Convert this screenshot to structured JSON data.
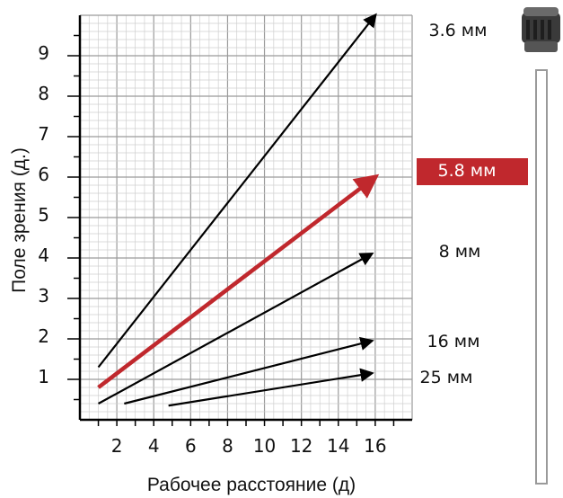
{
  "chart_data": {
    "type": "line",
    "xlabel": "Рабочее расстояние (д)",
    "ylabel": "Поле зрения (д.)",
    "xlim": [
      0,
      18
    ],
    "ylim": [
      0,
      10
    ],
    "x_ticks": [
      "2",
      "4",
      "6",
      "8",
      "10",
      "12",
      "14",
      "16"
    ],
    "y_ticks": [
      "1",
      "2",
      "3",
      "4",
      "5",
      "6",
      "7",
      "8",
      "9"
    ],
    "grid": true,
    "highlight_color": "#c0282d",
    "series": [
      {
        "name": "3.6 мм",
        "x": [
          1,
          16
        ],
        "y": [
          1.3,
          10.0
        ],
        "highlight": false
      },
      {
        "name": "5.8 мм",
        "x": [
          1,
          16
        ],
        "y": [
          0.8,
          6.0
        ],
        "highlight": true
      },
      {
        "name": "8 мм",
        "x": [
          1,
          15.8
        ],
        "y": [
          0.4,
          4.1
        ],
        "highlight": false
      },
      {
        "name": "16 мм",
        "x": [
          2.4,
          15.8
        ],
        "y": [
          0.4,
          1.95
        ],
        "highlight": false
      },
      {
        "name": "25 мм",
        "x": [
          4.8,
          15.8
        ],
        "y": [
          0.35,
          1.15
        ],
        "highlight": false
      }
    ]
  },
  "icons": {
    "lens": "camera-lens-icon",
    "mount": "mounting-rod-icon"
  }
}
